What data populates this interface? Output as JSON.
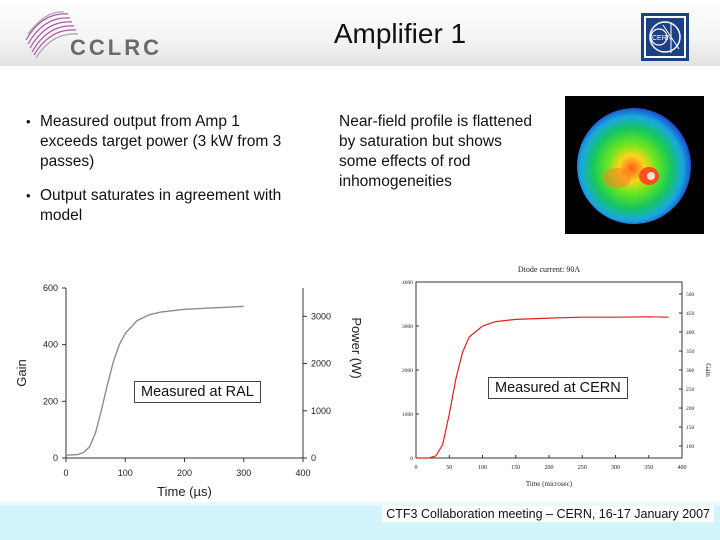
{
  "header": {
    "title": "Amplifier 1",
    "logo_text": "CCLRC",
    "cern_logo_text": "CERN"
  },
  "left_bullets": [
    "Measured output from Amp 1 exceeds target power (3 kW from 3 passes)",
    "Output saturates in agreement with model"
  ],
  "nearfield_text": "Near-field profile is flattened by saturation but shows some effects of rod inhomogeneities",
  "chart_labels": {
    "ral": "Measured at RAL",
    "cern": "Measured at CERN"
  },
  "footer": {
    "text": "CTF3 Collaboration meeting – CERN, 16-17 January 2007"
  },
  "chart_data": [
    {
      "type": "line",
      "xlabel": "Time (µs)",
      "ylabel": "Gain",
      "y2label": "Power (W)",
      "xlim": [
        0,
        400
      ],
      "ylim": [
        0,
        600
      ],
      "y2lim": [
        0,
        3600
      ],
      "x_ticks": [
        0,
        100,
        200,
        300,
        400
      ],
      "y_ticks": [
        0,
        200,
        400,
        600
      ],
      "y2_ticks": [
        0,
        1000,
        2000,
        3000
      ],
      "color": "#8c8c8c",
      "series": [
        {
          "x": [
            0,
            20,
            30,
            40,
            50,
            60,
            70,
            80,
            90,
            100,
            120,
            140,
            160,
            180,
            200,
            250,
            300
          ],
          "y": [
            10,
            12,
            20,
            40,
            90,
            170,
            260,
            340,
            400,
            440,
            485,
            505,
            515,
            520,
            525,
            530,
            535
          ]
        }
      ]
    },
    {
      "type": "line",
      "title": "Diode current: 90A",
      "xlabel": "Time (microsec)",
      "ylabel": "Gain",
      "xlim": [
        0,
        400
      ],
      "ylim": [
        0,
        4000
      ],
      "x_ticks": [
        0,
        50,
        100,
        150,
        200,
        250,
        300,
        350,
        400
      ],
      "y_ticks": [
        0,
        1000,
        2000,
        3000,
        4000
      ],
      "y2_ticks": [
        100,
        150,
        200,
        250,
        300,
        350,
        400,
        450,
        500
      ],
      "color": "#e02020",
      "series": [
        {
          "x": [
            0,
            20,
            30,
            40,
            50,
            60,
            70,
            80,
            100,
            120,
            150,
            200,
            250,
            300,
            350,
            380
          ],
          "y": [
            0,
            0,
            50,
            300,
            1000,
            1800,
            2400,
            2750,
            3000,
            3100,
            3150,
            3180,
            3200,
            3200,
            3210,
            3200
          ]
        }
      ]
    }
  ]
}
